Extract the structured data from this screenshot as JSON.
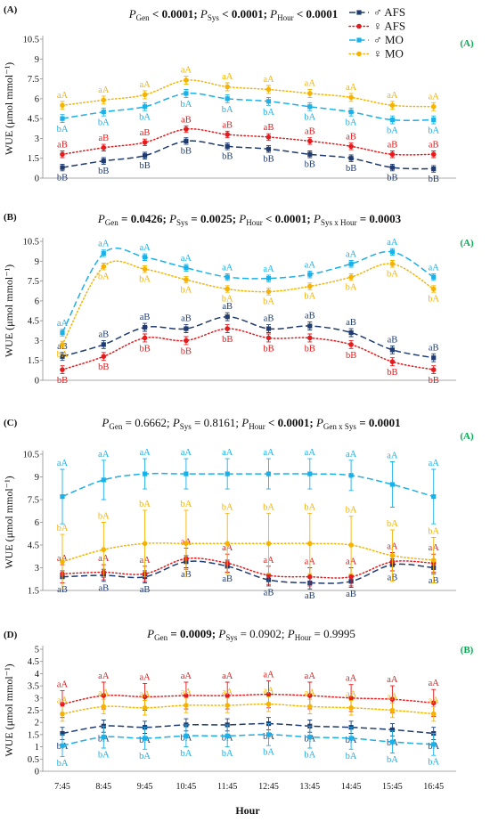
{
  "figure": {
    "ylabel": "WUE (μmol mmol⁻¹)",
    "xlabel": "Hour",
    "x_categories": [
      "7:45",
      "8:45",
      "9:45",
      "10:45",
      "11:45",
      "12:45",
      "13:45",
      "14:45",
      "15:45",
      "16:45"
    ]
  },
  "series_styles": [
    {
      "color": "#1f3b6f",
      "marker": "square",
      "line": "dashed"
    },
    {
      "color": "#e41a1c",
      "marker": "circle",
      "line": "dotted"
    },
    {
      "color": "#1ab0e8",
      "marker": "square",
      "line": "dashed"
    },
    {
      "color": "#f5b300",
      "marker": "circle",
      "line": "dotted"
    }
  ],
  "colors": {
    "group_label": "#00b050",
    "axis": "#8c8c8c",
    "text": "#111111"
  },
  "chart_data": [
    {
      "type": "line",
      "panel_label": "(A)",
      "group_label": "(A)",
      "separator": ";",
      "stats": [
        {
          "sym": "P",
          "sub": "Gen",
          "rel": "<",
          "value": "0.0001",
          "bold": true
        },
        {
          "sym": "P",
          "sub": "Sys",
          "rel": "<",
          "value": "0.0001",
          "bold": true
        },
        {
          "sym": "P",
          "sub": "Hour",
          "rel": "<",
          "value": "0.0001",
          "bold": true
        }
      ],
      "ylim": [
        0,
        10.5
      ],
      "yticks": [
        "0",
        "1.5",
        "3",
        "4.5",
        "6",
        "7.5",
        "9",
        "10.5"
      ],
      "legend": "top-right",
      "series": [
        {
          "name": "♂ AFS",
          "values": [
            0.8,
            1.3,
            1.7,
            2.8,
            2.4,
            2.2,
            1.8,
            1.5,
            0.8,
            0.7
          ],
          "err": [
            0.25,
            0.25,
            0.25,
            0.25,
            0.25,
            0.25,
            0.25,
            0.25,
            0.25,
            0.25
          ],
          "point_label": "bB",
          "label_position": "below"
        },
        {
          "name": "♀ AFS",
          "values": [
            1.8,
            2.3,
            2.7,
            3.7,
            3.3,
            3.1,
            2.8,
            2.4,
            1.8,
            1.8
          ],
          "err": [
            0.25,
            0.25,
            0.25,
            0.25,
            0.25,
            0.25,
            0.25,
            0.25,
            0.25,
            0.25
          ],
          "point_label": "aB",
          "label_position": "above"
        },
        {
          "name": "♂ MO",
          "values": [
            4.5,
            5.0,
            5.4,
            6.4,
            6.0,
            5.8,
            5.4,
            5.0,
            4.4,
            4.4
          ],
          "err": [
            0.3,
            0.3,
            0.3,
            0.3,
            0.3,
            0.3,
            0.3,
            0.3,
            0.3,
            0.3
          ],
          "point_label": "bA",
          "label_position": "below"
        },
        {
          "name": "♀ MO",
          "values": [
            5.5,
            5.9,
            6.3,
            7.4,
            6.9,
            6.7,
            6.4,
            6.1,
            5.5,
            5.4
          ],
          "err": [
            0.3,
            0.3,
            0.3,
            0.3,
            0.3,
            0.3,
            0.3,
            0.3,
            0.3,
            0.3
          ],
          "point_label": "aA",
          "label_position": "above"
        }
      ]
    },
    {
      "type": "line",
      "panel_label": "(B)",
      "group_label": "(A)",
      "separator": ";",
      "stats": [
        {
          "sym": "P",
          "sub": "Gen",
          "rel": "=",
          "value": "0.0426",
          "bold": true
        },
        {
          "sym": "P",
          "sub": "Sys",
          "rel": "=",
          "value": "0.0025",
          "bold": true
        },
        {
          "sym": "P",
          "sub": "Hour",
          "rel": "<",
          "value": "0.0001",
          "bold": true
        },
        {
          "sym": "P",
          "sub": "Sys x Hour",
          "rel": "=",
          "value": "0.0003",
          "bold": true
        }
      ],
      "ylim": [
        0,
        10.5
      ],
      "yticks": [
        "0",
        "1.5",
        "3",
        "4.5",
        "6",
        "7.5",
        "9",
        "10.5"
      ],
      "series": [
        {
          "values": [
            1.8,
            2.7,
            4.0,
            3.9,
            4.8,
            3.9,
            4.1,
            3.6,
            2.3,
            1.7
          ],
          "err": [
            0.3,
            0.3,
            0.3,
            0.3,
            0.3,
            0.3,
            0.3,
            0.3,
            0.3,
            0.3
          ],
          "point_label": "aB",
          "label_position": "above"
        },
        {
          "values": [
            0.8,
            1.8,
            3.2,
            3.0,
            3.9,
            3.2,
            3.2,
            2.7,
            1.4,
            0.8
          ],
          "err": [
            0.3,
            0.3,
            0.3,
            0.3,
            0.3,
            0.3,
            0.3,
            0.3,
            0.3,
            0.3
          ],
          "point_label": "bB",
          "label_position": "below"
        },
        {
          "values": [
            3.6,
            9.6,
            9.3,
            8.5,
            7.8,
            7.7,
            8.0,
            8.8,
            9.7,
            7.8
          ],
          "err": [
            0.25,
            0.25,
            0.25,
            0.25,
            0.25,
            0.25,
            0.25,
            0.25,
            0.25,
            0.25
          ],
          "point_label": "aA",
          "label_position": "above"
        },
        {
          "values": [
            2.7,
            8.6,
            8.4,
            7.6,
            6.9,
            6.7,
            7.1,
            7.8,
            8.8,
            6.9
          ],
          "err": [
            0.25,
            0.25,
            0.25,
            0.25,
            0.25,
            0.25,
            0.25,
            0.25,
            0.25,
            0.25
          ],
          "point_label": "bA",
          "label_position": "below"
        }
      ]
    },
    {
      "type": "line",
      "panel_label": "(C)",
      "group_label": "(A)",
      "separator": ";",
      "stats": [
        {
          "sym": "P",
          "sub": "Gen",
          "rel": "=",
          "value": "0.6662",
          "bold": false
        },
        {
          "sym": "P",
          "sub": "Sys",
          "rel": "=",
          "value": "0.8161",
          "bold": false
        },
        {
          "sym": "P",
          "sub": "Hour",
          "rel": "<",
          "value": "0.0001",
          "bold": true
        },
        {
          "sym": "P",
          "sub": "Gen x Sys",
          "rel": "=",
          "value": "0.0001",
          "bold": true
        }
      ],
      "ylim": [
        1.5,
        10.5
      ],
      "yticks": [
        "1.5",
        "3",
        "4.5",
        "6",
        "7.5",
        "9",
        "10.5"
      ],
      "series": [
        {
          "values": [
            2.4,
            2.5,
            2.4,
            3.4,
            3.1,
            2.2,
            2.0,
            2.1,
            3.2,
            3.0
          ],
          "err": [
            0.4,
            0.4,
            0.4,
            0.4,
            0.4,
            0.4,
            0.4,
            0.4,
            0.4,
            0.4
          ],
          "point_label": "aB",
          "label_position": "below"
        },
        {
          "values": [
            2.6,
            2.7,
            2.6,
            3.6,
            3.3,
            2.5,
            2.4,
            2.4,
            3.4,
            3.3
          ],
          "err": [
            0.6,
            0.5,
            0.5,
            0.7,
            0.6,
            0.6,
            0.6,
            0.6,
            0.6,
            0.6
          ],
          "point_label": "aA",
          "label_position": "above"
        },
        {
          "values": [
            7.7,
            8.8,
            9.2,
            9.2,
            9.2,
            9.2,
            9.2,
            9.1,
            8.5,
            7.7
          ],
          "err": [
            1.8,
            1.3,
            1.0,
            1.0,
            1.0,
            1.0,
            1.0,
            1.0,
            1.5,
            1.8
          ],
          "point_label": "aA",
          "label_position": "above"
        },
        {
          "values": [
            3.4,
            4.2,
            4.6,
            4.6,
            4.6,
            4.6,
            4.6,
            4.5,
            3.8,
            3.5
          ],
          "err": [
            1.8,
            1.8,
            2.2,
            2.2,
            2.0,
            2.0,
            2.0,
            1.9,
            1.7,
            1.5
          ],
          "point_label": "bA",
          "label_position": "above"
        }
      ]
    },
    {
      "type": "line",
      "panel_label": "(D)",
      "group_label": "(B)",
      "separator": ";",
      "stats": [
        {
          "sym": "P",
          "sub": "Gen",
          "rel": "=",
          "value": "0.0009",
          "bold": true
        },
        {
          "sym": "P",
          "sub": "Sys",
          "rel": "=",
          "value": "0.0902",
          "bold": false
        },
        {
          "sym": "P",
          "sub": "Hour",
          "rel": "=",
          "value": "0.9995",
          "bold": false
        }
      ],
      "ylim": [
        0,
        5
      ],
      "yticks": [
        "0",
        "0.5",
        "1",
        "1.5",
        "2",
        "2.5",
        "3",
        "3.5",
        "4",
        "4.5",
        "5"
      ],
      "series": [
        {
          "values": [
            1.55,
            1.85,
            1.8,
            1.9,
            1.9,
            1.95,
            1.85,
            1.8,
            1.7,
            1.55
          ],
          "err": [
            0.25,
            0.25,
            0.25,
            0.25,
            0.25,
            0.25,
            0.25,
            0.25,
            0.25,
            0.25
          ],
          "point_label": "bA",
          "label_position": "below"
        },
        {
          "values": [
            2.75,
            3.1,
            3.05,
            3.1,
            3.1,
            3.15,
            3.1,
            3.0,
            2.95,
            2.8
          ],
          "err": [
            0.55,
            0.55,
            0.55,
            0.55,
            0.55,
            0.55,
            0.55,
            0.55,
            0.55,
            0.55
          ],
          "point_label": "aA",
          "label_position": "above"
        },
        {
          "values": [
            1.05,
            1.4,
            1.35,
            1.45,
            1.45,
            1.5,
            1.4,
            1.35,
            1.2,
            1.1
          ],
          "err": [
            0.45,
            0.45,
            0.45,
            0.45,
            0.45,
            0.45,
            0.45,
            0.45,
            0.45,
            0.45
          ],
          "point_label": "bA",
          "label_position": "below"
        },
        {
          "values": [
            2.35,
            2.65,
            2.6,
            2.7,
            2.7,
            2.75,
            2.65,
            2.6,
            2.5,
            2.35
          ],
          "err": [
            0.3,
            0.3,
            0.3,
            0.3,
            0.3,
            0.3,
            0.3,
            0.3,
            0.3,
            0.3
          ],
          "point_label": "aA",
          "label_position": "above"
        }
      ]
    }
  ]
}
